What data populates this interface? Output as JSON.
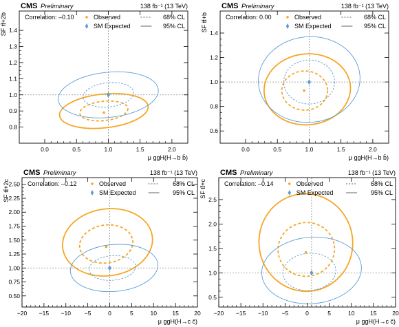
{
  "colors": {
    "observed": "#f5a623",
    "expected": "#5b9bd5",
    "refline": "#8a8a8a"
  },
  "chart_data": [
    {
      "type": "scatter",
      "header": {
        "experiment": "CMS",
        "status": "Preliminary",
        "lumi": "138 fb⁻¹ (13 TeV)"
      },
      "correlation": "Correlation: –0.10",
      "xlabel": "μ ggH(H→b b̄)",
      "ylabel": "SF tt̄+2b",
      "xlim": [
        -0.4,
        2.25
      ],
      "ylim": [
        0.7,
        1.52
      ],
      "xticks": [
        0.0,
        0.5,
        1.0,
        1.5,
        2.0
      ],
      "xtick_labels": [
        "0.0",
        "0.5",
        "1.0",
        "1.5",
        "2.0"
      ],
      "yticks": [
        0.8,
        0.9,
        1.0,
        1.1,
        1.2,
        1.3,
        1.4
      ],
      "ytick_labels": [
        "0.8",
        "0.9",
        "1.0",
        "1.1",
        "1.2",
        "1.3",
        "1.4"
      ],
      "legend": {
        "observed": "Observed",
        "expected": "SM Expected",
        "cl68": "68% CL",
        "cl95": "95% CL",
        "position": "top"
      },
      "observed_point": {
        "x": 0.93,
        "y": 0.89
      },
      "expected_point": {
        "x": 1.0,
        "y": 1.0
      },
      "contours": [
        {
          "kind": "observed",
          "cl": "68%",
          "cx": 0.93,
          "cy": 0.9,
          "rx": 0.38,
          "ry": 0.06,
          "rot_deg": -6
        },
        {
          "kind": "observed",
          "cl": "95%",
          "cx": 0.93,
          "cy": 0.9,
          "rx": 0.7,
          "ry": 0.105,
          "rot_deg": -6
        },
        {
          "kind": "expected",
          "cl": "68%",
          "cx": 1.0,
          "cy": 1.0,
          "rx": 0.4,
          "ry": 0.075,
          "rot_deg": -6
        },
        {
          "kind": "expected",
          "cl": "95%",
          "cx": 1.0,
          "cy": 1.0,
          "rx": 0.79,
          "ry": 0.14,
          "rot_deg": -6
        }
      ]
    },
    {
      "type": "scatter",
      "header": {
        "experiment": "CMS",
        "status": "Preliminary",
        "lumi": "138 fb⁻¹ (13 TeV)"
      },
      "correlation": "Correlation: 0.00",
      "xlabel": "μ ggH(H→b b̄)",
      "ylabel": "SF tt̄+b",
      "xlim": [
        -0.4,
        2.25
      ],
      "ylim": [
        0.5,
        1.58
      ],
      "xticks": [
        0.0,
        0.5,
        1.0,
        1.5,
        2.0
      ],
      "xtick_labels": [
        "0.0",
        "0.5",
        "1.0",
        "1.5",
        "2.0"
      ],
      "yticks": [
        0.6,
        0.8,
        1.0,
        1.2,
        1.4
      ],
      "ytick_labels": [
        "0.6",
        "0.8",
        "1.0",
        "1.2",
        "1.4"
      ],
      "legend": {
        "observed": "Observed",
        "expected": "SM Expected",
        "cl68": "68% CL",
        "cl95": "95% CL",
        "position": "top"
      },
      "observed_point": {
        "x": 0.92,
        "y": 0.93
      },
      "expected_point": {
        "x": 1.0,
        "y": 1.0
      },
      "contours": [
        {
          "kind": "observed",
          "cl": "68%",
          "cx": 0.93,
          "cy": 0.93,
          "rx": 0.36,
          "ry": 0.16,
          "rot_deg": 0
        },
        {
          "kind": "observed",
          "cl": "95%",
          "cx": 0.97,
          "cy": 0.94,
          "rx": 0.68,
          "ry": 0.29,
          "rot_deg": -5
        },
        {
          "kind": "expected",
          "cl": "68%",
          "cx": 1.0,
          "cy": 1.0,
          "rx": 0.4,
          "ry": 0.18,
          "rot_deg": 0
        },
        {
          "kind": "expected",
          "cl": "95%",
          "cx": 1.0,
          "cy": 1.02,
          "rx": 0.8,
          "ry": 0.35,
          "rot_deg": -5
        }
      ]
    },
    {
      "type": "scatter",
      "header": {
        "experiment": "CMS",
        "status": "Preliminary",
        "lumi": "138 fb⁻¹ (13 TeV)"
      },
      "correlation": "Correlation: –0.12",
      "xlabel": "μ ggH(H→c c̄)",
      "ylabel": "SF tt̄+2c",
      "xlim": [
        -20,
        20
      ],
      "ylim": [
        0.3,
        2.62
      ],
      "xticks": [
        -20,
        -15,
        -10,
        -5,
        0,
        5,
        10,
        15,
        20
      ],
      "xtick_labels": [
        "−20",
        "−15",
        "−10",
        "−5",
        "0",
        "5",
        "10",
        "15",
        "20"
      ],
      "yticks": [
        0.5,
        0.75,
        1.0,
        1.25,
        1.5,
        1.75,
        2.0,
        2.25,
        2.5
      ],
      "ytick_labels": [
        "0.50",
        "0.75",
        "1.00",
        "1.25",
        "1.50",
        "1.75",
        "2.00",
        "2.25",
        "2.50"
      ],
      "legend": {
        "observed": "Observed",
        "expected": "SM Expected",
        "cl68": "68% CL",
        "cl95": "95% CL",
        "position": "top"
      },
      "observed_point": {
        "x": -0.8,
        "y": 1.38
      },
      "expected_point": {
        "x": 0.0,
        "y": 1.0
      },
      "contours": [
        {
          "kind": "observed",
          "cl": "68%",
          "cx": -0.8,
          "cy": 1.43,
          "rx": 6.1,
          "ry": 0.34,
          "rot_deg": -8
        },
        {
          "kind": "observed",
          "cl": "95%",
          "cx": -0.5,
          "cy": 1.46,
          "rx": 10.3,
          "ry": 0.6,
          "rot_deg": -8
        },
        {
          "kind": "expected",
          "cl": "68%",
          "cx": 0.6,
          "cy": 1.0,
          "rx": 5.3,
          "ry": 0.22,
          "rot_deg": -5
        },
        {
          "kind": "expected",
          "cl": "95%",
          "cx": 1.0,
          "cy": 1.0,
          "rx": 10.0,
          "ry": 0.42,
          "rot_deg": -5
        }
      ]
    },
    {
      "type": "scatter",
      "header": {
        "experiment": "CMS",
        "status": "Preliminary",
        "lumi": "138 fb⁻¹ (13 TeV)"
      },
      "correlation": "Correlation: –0.14",
      "xlabel": "μ ggH(H→c c̄)",
      "ylabel": "SF tt̄+c",
      "xlim": [
        -20,
        20
      ],
      "ylim": [
        0.3,
        2.95
      ],
      "xticks": [
        -20,
        -15,
        -10,
        -5,
        0,
        5,
        10,
        15,
        20
      ],
      "xtick_labels": [
        "−20",
        "−15",
        "−10",
        "−5",
        "0",
        "5",
        "10",
        "15",
        "20"
      ],
      "yticks": [
        0.5,
        1.0,
        1.5,
        2.0,
        2.5
      ],
      "ytick_labels": [
        "0.5",
        "1.0",
        "1.5",
        "2.0",
        "2.5"
      ],
      "legend": {
        "observed": "Observed",
        "expected": "SM Expected",
        "cl68": "68% CL",
        "cl95": "95% CL",
        "position": "top"
      },
      "observed_point": {
        "x": -0.3,
        "y": 1.42
      },
      "expected_point": {
        "x": 1.0,
        "y": 1.0
      },
      "contours": [
        {
          "kind": "observed",
          "cl": "68%",
          "cx": -0.2,
          "cy": 1.48,
          "rx": 6.4,
          "ry": 0.55,
          "rot_deg": -8
        },
        {
          "kind": "observed",
          "cl": "95%",
          "cx": -0.3,
          "cy": 1.62,
          "rx": 10.6,
          "ry": 1.0,
          "rot_deg": -8
        },
        {
          "kind": "expected",
          "cl": "68%",
          "cx": 0.5,
          "cy": 1.02,
          "rx": 6.0,
          "ry": 0.38,
          "rot_deg": -5
        },
        {
          "kind": "expected",
          "cl": "95%",
          "cx": 1.0,
          "cy": 1.05,
          "rx": 11.3,
          "ry": 0.68,
          "rot_deg": -5
        }
      ]
    }
  ]
}
